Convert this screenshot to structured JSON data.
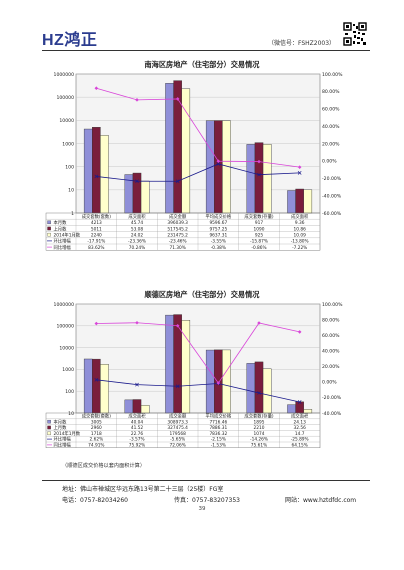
{
  "header": {
    "logo_text": "HZ鸿正",
    "wechat": "（微信号：FSHZ2003）",
    "qr_icon": "qr-code-icon"
  },
  "chart_data": [
    {
      "type": "bar",
      "title": "南海区房地产（住宅部分）交易情况",
      "categories": [
        "成交套数(套数)",
        "成交面积",
        "成交金额",
        "平均成交价格",
        "成交套数(存量)",
        "成交面积"
      ],
      "y_left_scale": "log",
      "y_left_ticks": [
        "1000000",
        "100000",
        "10000",
        "1000",
        "100",
        "10",
        "1"
      ],
      "y_right_ticks": [
        "100.00%",
        "80.00%",
        "60.00%",
        "40.00%",
        "20.00%",
        "0.00%",
        "-20.00%",
        "-40.00%",
        "-60.00%"
      ],
      "series": [
        {
          "name": "本月数",
          "color": "#8f8fd8",
          "values": [
            4213,
            45.74,
            396039.3,
            9596.67,
            917,
            9.36
          ],
          "labels": [
            "4213",
            "45.74",
            "396039.3",
            "9596.67",
            "917",
            "9.36"
          ]
        },
        {
          "name": "上月数",
          "color": "#7a1e3c",
          "values": [
            5011,
            53.08,
            517545.2,
            9757.25,
            1090,
            10.86
          ],
          "labels": [
            "5011",
            "53.08",
            "517545.2",
            "9757.25",
            "1090",
            "10.86"
          ]
        },
        {
          "name": "2014年1月数",
          "color": "#ffffcc",
          "values": [
            2240,
            24.02,
            231475.2,
            9637.31,
            925,
            10.09
          ],
          "labels": [
            "2240",
            "24.02",
            "231475.2",
            "9637.31",
            "925",
            "10.09"
          ]
        }
      ],
      "lines": [
        {
          "name": "环比增幅",
          "color": "#1a1a8c",
          "marker": "cross",
          "values": [
            -17.91,
            -23.36,
            -23.46,
            -3.55,
            -15.87,
            -13.8
          ],
          "labels": [
            "-17.91%",
            "-23.36%",
            "-23.46%",
            "-3.55%",
            "-15.87%",
            "-13.80%"
          ]
        },
        {
          "name": "同比增幅",
          "color": "#d946d9",
          "marker": "diamond",
          "values": [
            83.62,
            70.24,
            71.3,
            -0.38,
            -0.86,
            -7.22
          ],
          "labels": [
            "83.62%",
            "70.24%",
            "71.30%",
            "-0.38%",
            "-0.86%",
            "-7.22%"
          ]
        }
      ]
    },
    {
      "type": "bar",
      "title": "顺德区房地产（住宅部分）交易情况",
      "categories": [
        "成交套数(套数)",
        "成交面积",
        "成交金额",
        "平均成交价格",
        "成交套数(存量)",
        "成交面积"
      ],
      "y_left_scale": "log",
      "y_left_ticks": [
        "1000000",
        "100000",
        "10000",
        "1000",
        "100",
        "10"
      ],
      "y_right_ticks": [
        "100.00%",
        "80.00%",
        "60.00%",
        "40.00%",
        "20.00%",
        "0.00%",
        "-20.00%",
        "-40.00%"
      ],
      "series": [
        {
          "name": "本月数",
          "color": "#8f8fd8",
          "values": [
            3005,
            40.04,
            308973.3,
            7716.46,
            1895,
            24.13
          ],
          "labels": [
            "3005",
            "40.04",
            "308973.3",
            "7716.46",
            "1895",
            "24.13"
          ]
        },
        {
          "name": "上月数",
          "color": "#7a1e3c",
          "values": [
            2960,
            41.52,
            327475.4,
            7886.31,
            2210,
            32.56
          ],
          "labels": [
            "2960",
            "41.52",
            "327475.4",
            "7886.31",
            "2210",
            "32.56"
          ]
        },
        {
          "name": "2014年1月数",
          "color": "#ffffcc",
          "values": [
            1718,
            22.76,
            179568,
            7836.32,
            1074,
            14.7
          ],
          "labels": [
            "1718",
            "22.76",
            "179568",
            "7836.32",
            "1074",
            "14.7"
          ]
        }
      ],
      "lines": [
        {
          "name": "环比增幅",
          "color": "#1a1a8c",
          "marker": "cross",
          "values": [
            2.62,
            -3.57,
            -5.65,
            -2.15,
            -14.26,
            -25.89
          ],
          "labels": [
            "2.62%",
            "-3.57%",
            "-5.65%",
            "-2.15%",
            "-14.26%",
            "-25.89%"
          ]
        },
        {
          "name": "同比增幅",
          "color": "#d946d9",
          "marker": "diamond",
          "values": [
            74.91,
            75.92,
            72.06,
            -1.53,
            75.61,
            64.15
          ],
          "labels": [
            "74.91%",
            "75.92%",
            "72.06%",
            "-1.53%",
            "75.61%",
            "64.15%"
          ]
        }
      ]
    }
  ],
  "note": "（顺德区成交价格以套内面积计算）",
  "footer": {
    "address": "地址：佛山市禅城区华远东路13号第二十三层（25楼）FG室",
    "phone": "电话：0757-82034260",
    "fax": "传真：0757-83207353",
    "website": "网站：www.hztdfdc.com",
    "page": "39"
  }
}
